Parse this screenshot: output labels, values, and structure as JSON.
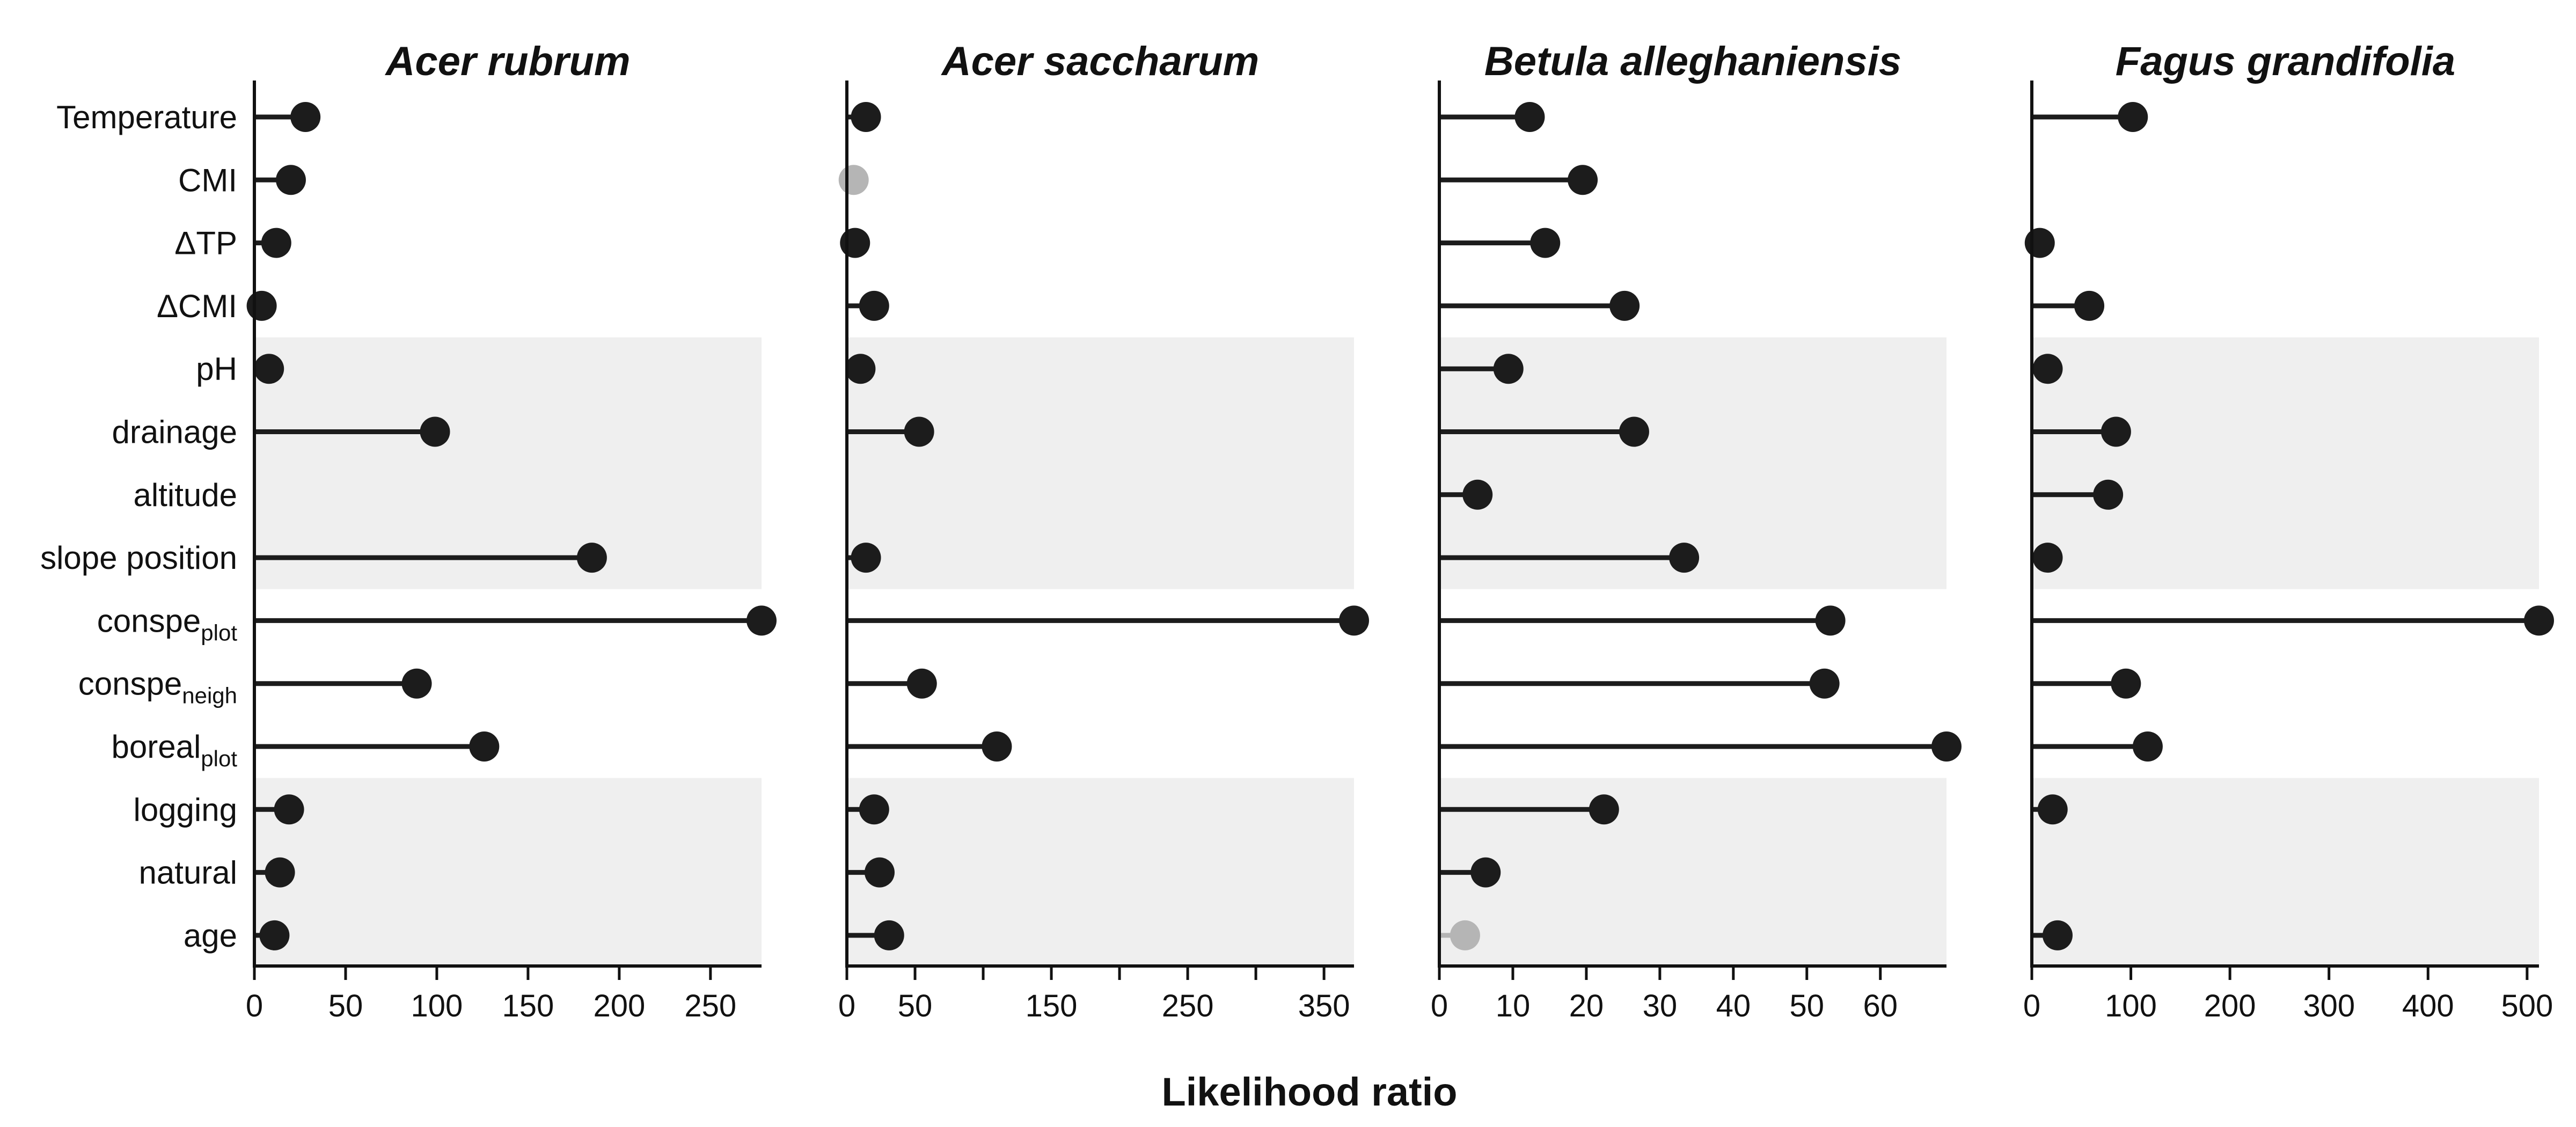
{
  "chart_data": {
    "type": "lollipop",
    "xlabel": "Likelihood ratio",
    "variables": [
      {
        "main": "Temperature",
        "sub": ""
      },
      {
        "main": "CMI",
        "sub": ""
      },
      {
        "main": "ΔTP",
        "sub": ""
      },
      {
        "main": "ΔCMI",
        "sub": ""
      },
      {
        "main": "pH",
        "sub": ""
      },
      {
        "main": "drainage",
        "sub": ""
      },
      {
        "main": "altitude",
        "sub": ""
      },
      {
        "main": "slope position",
        "sub": ""
      },
      {
        "main": "conspe",
        "sub": "plot"
      },
      {
        "main": "conspe",
        "sub": "neigh"
      },
      {
        "main": "boreal",
        "sub": "plot"
      },
      {
        "main": "logging",
        "sub": ""
      },
      {
        "main": "natural",
        "sub": ""
      },
      {
        "main": "age",
        "sub": ""
      }
    ],
    "shaded_groups": [
      [
        4,
        7
      ],
      [
        11,
        13
      ]
    ],
    "colors": {
      "significant": "#1c1c1c",
      "not_significant": "#b5b5b5",
      "shade": "#efefef",
      "axis": "#111111"
    },
    "panels": [
      {
        "title": "Acer rubrum",
        "xlim": [
          0,
          278
        ],
        "ticks": [
          0,
          50,
          100,
          150,
          200,
          250
        ],
        "values": [
          28,
          20,
          12,
          4,
          8,
          99,
          null,
          185,
          278,
          89,
          126,
          19,
          14,
          11
        ],
        "significant": [
          true,
          true,
          true,
          true,
          true,
          true,
          null,
          true,
          true,
          true,
          true,
          true,
          true,
          true
        ]
      },
      {
        "title": "Acer saccharum",
        "xlim": [
          0,
          372
        ],
        "ticks": [
          0,
          50,
          150,
          250,
          350
        ],
        "minor_ticks": [
          100,
          200,
          300
        ],
        "values": [
          14,
          5,
          6,
          20,
          10,
          53,
          null,
          14,
          372,
          55,
          110,
          20,
          24,
          31
        ],
        "significant": [
          true,
          false,
          true,
          true,
          true,
          true,
          null,
          true,
          true,
          true,
          true,
          true,
          true,
          true
        ]
      },
      {
        "title": "Betula alleghaniensis",
        "xlim": [
          0,
          69
        ],
        "ticks": [
          0,
          10,
          20,
          30,
          40,
          50,
          60
        ],
        "values": [
          12.3,
          19.5,
          14.4,
          25.2,
          9.4,
          26.5,
          5.2,
          33.3,
          53.2,
          52.4,
          69,
          22.4,
          6.3,
          3.5
        ],
        "significant": [
          true,
          true,
          true,
          true,
          true,
          true,
          true,
          true,
          true,
          true,
          true,
          true,
          true,
          false
        ]
      },
      {
        "title": "Fagus grandifolia",
        "xlim": [
          0,
          512
        ],
        "ticks": [
          0,
          100,
          200,
          300,
          400,
          500
        ],
        "values": [
          102,
          null,
          8,
          58,
          16,
          85,
          77,
          16,
          512,
          95,
          117,
          21,
          null,
          26
        ],
        "significant": [
          true,
          null,
          true,
          true,
          true,
          true,
          true,
          true,
          true,
          true,
          true,
          true,
          null,
          true
        ]
      }
    ]
  }
}
